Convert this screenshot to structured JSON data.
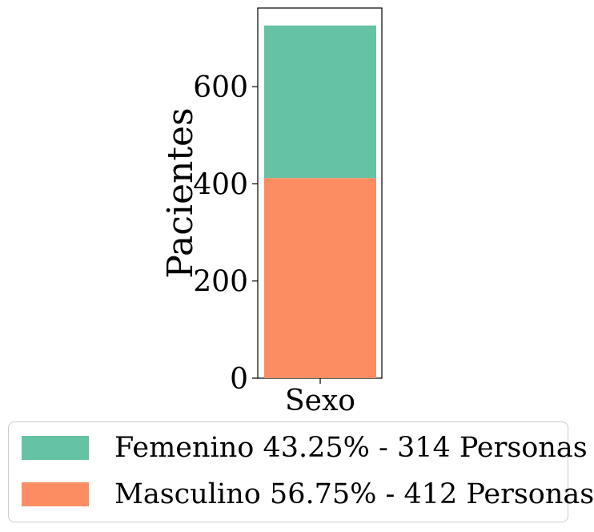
{
  "chart_data": {
    "type": "bar",
    "stacked": true,
    "categories": [
      "Sexo"
    ],
    "series": [
      {
        "name": "Masculino 56.75% - 412 Personas",
        "values": [
          412
        ],
        "color": "#fc8d62"
      },
      {
        "name": "Femenino 43.25% - 314 Personas",
        "values": [
          314
        ],
        "color": "#66c2a5"
      }
    ],
    "xlabel": "",
    "ylabel": "Pacientes",
    "ylim": [
      0,
      762
    ],
    "yticks": [
      0,
      200,
      400,
      600
    ],
    "ytick_labels": [
      "0",
      "200",
      "400",
      "600"
    ],
    "grid": false,
    "legend_placement": "bottom"
  },
  "legend": {
    "items": [
      {
        "label": "Femenino 43.25% - 314 Personas",
        "color": "#66c2a5"
      },
      {
        "label": "Masculino 56.75% - 412 Personas",
        "color": "#fc8d62"
      }
    ]
  }
}
